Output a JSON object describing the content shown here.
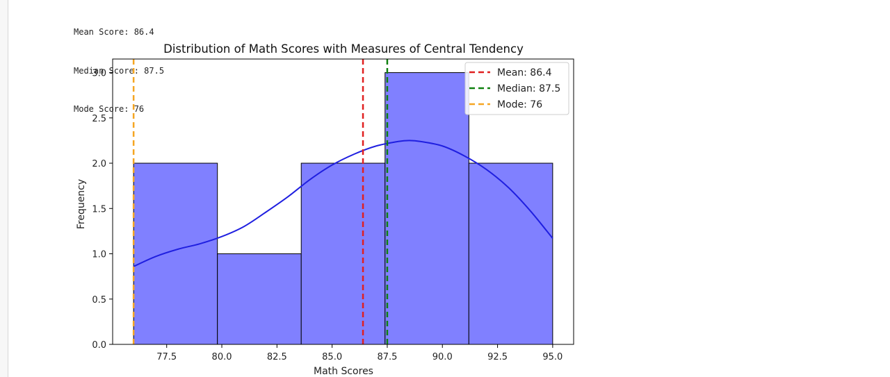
{
  "output": {
    "lines": [
      "Mean Score: 86.4",
      "Median Score: 87.5",
      "Mode Score: 76"
    ]
  },
  "chart_data": {
    "type": "histogram",
    "title": "Distribution of Math Scores with Measures of Central Tendency",
    "xlabel": "Math Scores",
    "ylabel": "Frequency",
    "xlim": [
      75.05,
      95.95
    ],
    "ylim": [
      0,
      3.15
    ],
    "xticks": [
      77.5,
      80.0,
      82.5,
      85.0,
      87.5,
      90.0,
      92.5,
      95.0
    ],
    "xtick_labels": [
      "77.5",
      "80.0",
      "82.5",
      "85.0",
      "87.5",
      "90.0",
      "92.5",
      "95.0"
    ],
    "yticks": [
      0.0,
      0.5,
      1.0,
      1.5,
      2.0,
      2.5,
      3.0
    ],
    "ytick_labels": [
      "0.0",
      "0.5",
      "1.0",
      "1.5",
      "2.0",
      "2.5",
      "3.0"
    ],
    "bins": [
      {
        "x0": 76.0,
        "x1": 79.8,
        "count": 2
      },
      {
        "x0": 79.8,
        "x1": 83.6,
        "count": 1
      },
      {
        "x0": 83.6,
        "x1": 87.4,
        "count": 2
      },
      {
        "x0": 87.4,
        "x1": 91.2,
        "count": 3
      },
      {
        "x0": 91.2,
        "x1": 95.0,
        "count": 2
      }
    ],
    "bar_color": "#8080ff",
    "kde": {
      "color": "#1f1fe0",
      "points": [
        [
          76.0,
          0.86
        ],
        [
          77.0,
          0.97
        ],
        [
          78.0,
          1.05
        ],
        [
          79.0,
          1.11
        ],
        [
          80.0,
          1.19
        ],
        [
          81.0,
          1.3
        ],
        [
          82.0,
          1.46
        ],
        [
          83.0,
          1.63
        ],
        [
          84.0,
          1.82
        ],
        [
          85.0,
          1.98
        ],
        [
          86.0,
          2.1
        ],
        [
          87.0,
          2.19
        ],
        [
          88.0,
          2.24
        ],
        [
          88.5,
          2.25
        ],
        [
          89.0,
          2.24
        ],
        [
          90.0,
          2.19
        ],
        [
          91.0,
          2.08
        ],
        [
          92.0,
          1.93
        ],
        [
          93.0,
          1.73
        ],
        [
          94.0,
          1.47
        ],
        [
          95.0,
          1.17
        ]
      ]
    },
    "vlines": [
      {
        "x": 86.4,
        "color": "#e02020",
        "label": "Mean: 86.4"
      },
      {
        "x": 87.5,
        "color": "#108010",
        "label": "Median: 87.5"
      },
      {
        "x": 76.0,
        "color": "#f5a623",
        "label": "Mode: 76"
      }
    ],
    "legend_position": "top-right",
    "grid": false
  }
}
